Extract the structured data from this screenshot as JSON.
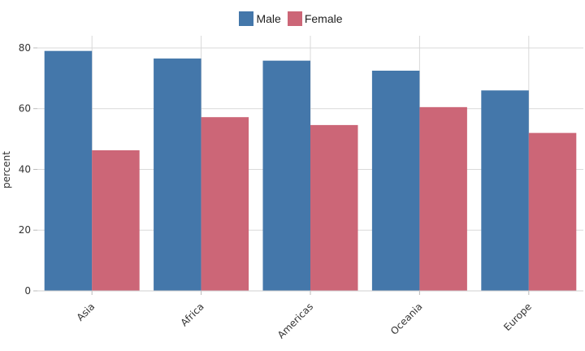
{
  "chart_data": {
    "type": "bar",
    "categories": [
      "Asia",
      "Africa",
      "Americas",
      "Oceania",
      "Europe"
    ],
    "series": [
      {
        "name": "Male",
        "values": [
          79,
          76.5,
          75.8,
          72.5,
          66
        ],
        "color": "#4477aa"
      },
      {
        "name": "Female",
        "values": [
          46.3,
          57.2,
          54.6,
          60.5,
          52
        ],
        "color": "#cc6677"
      }
    ],
    "ylabel": "percent",
    "xlabel": "",
    "ylim": [
      0,
      84
    ],
    "yticks": [
      0,
      20,
      40,
      60,
      80
    ],
    "grid": true,
    "legend_position": "top-center",
    "xtick_rotation": -45
  }
}
